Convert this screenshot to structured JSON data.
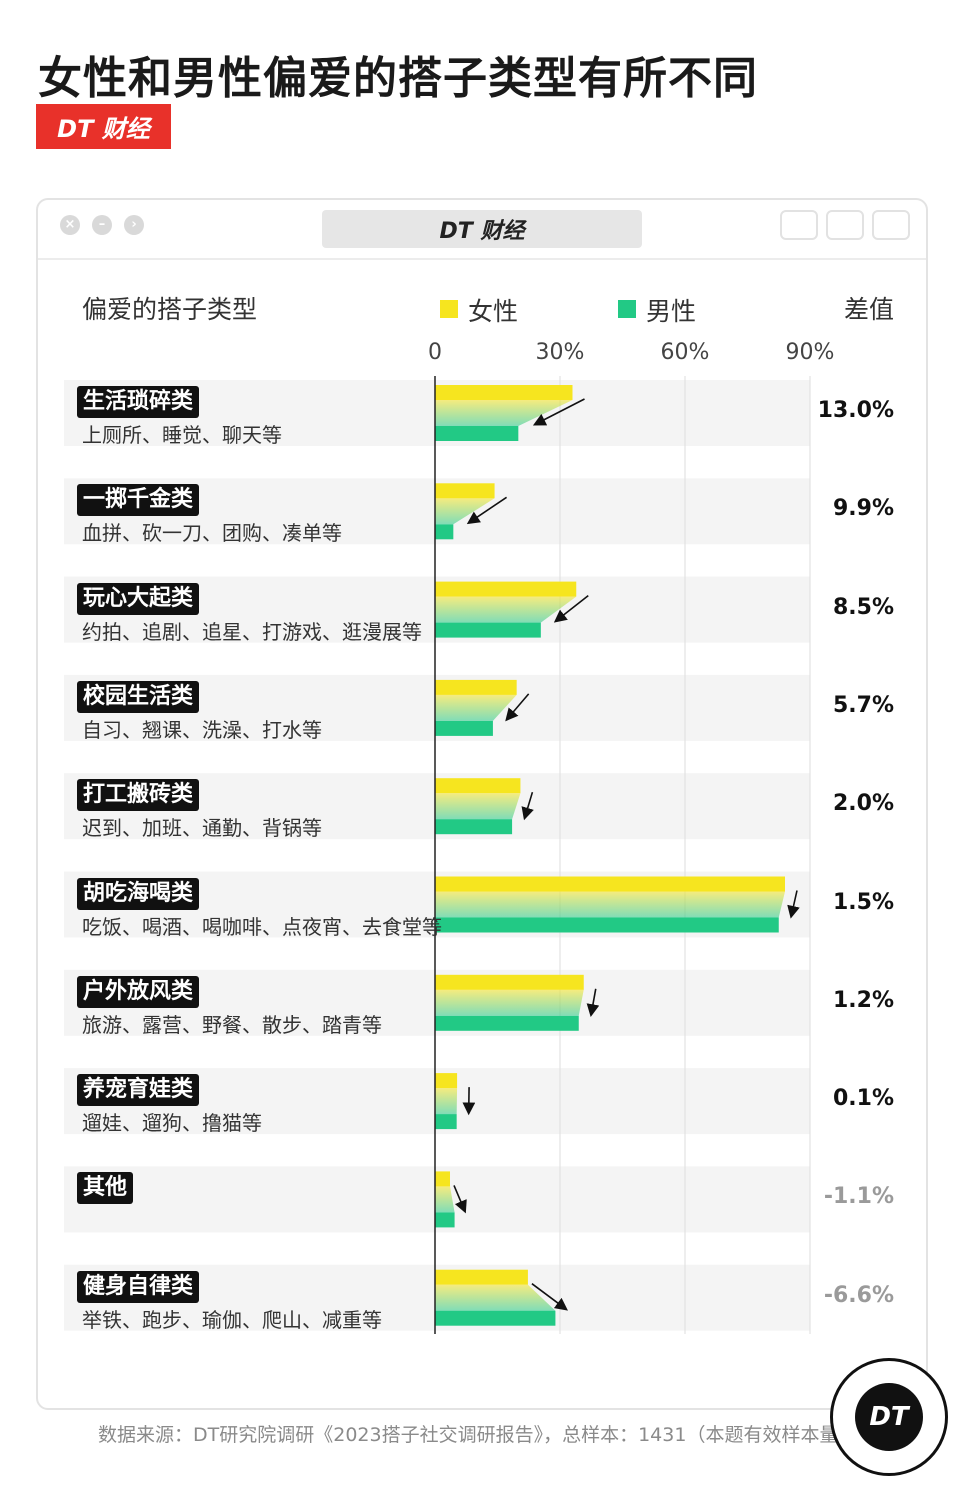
{
  "headline": "女性和男性偏爱的搭子类型有所不同",
  "brand": "DT 财经",
  "window_title": "DT 财经",
  "header": {
    "category_label": "偏爱的搭子类型",
    "diff_label": "差值"
  },
  "colors": {
    "female": "#f6e51f",
    "male": "#22c985",
    "badge": "#e8312a"
  },
  "chart_data": {
    "type": "bar",
    "xlim": [
      0,
      90
    ],
    "x_ticks": [
      "0",
      "30%",
      "60%",
      "90%"
    ],
    "x_tick_values": [
      0,
      30,
      60,
      90
    ],
    "series": [
      {
        "name": "女性",
        "values": [
          33.0,
          14.3,
          33.9,
          19.6,
          20.5,
          84.0,
          35.7,
          5.3,
          3.6,
          22.3
        ]
      },
      {
        "name": "男性",
        "values": [
          20.0,
          4.4,
          25.4,
          13.9,
          18.5,
          82.5,
          34.5,
          5.2,
          4.7,
          28.9
        ]
      }
    ],
    "categories": [
      {
        "name": "生活琐碎类",
        "desc": "上厕所、睡觉、聊天等",
        "diff": "13.0%"
      },
      {
        "name": "一掷千金类",
        "desc": "血拼、砍一刀、团购、凑单等",
        "diff": "9.9%"
      },
      {
        "name": "玩心大起类",
        "desc": "约拍、追剧、追星、打游戏、逛漫展等",
        "diff": "8.5%"
      },
      {
        "name": "校园生活类",
        "desc": "自习、翘课、洗澡、打水等",
        "diff": "5.7%"
      },
      {
        "name": "打工搬砖类",
        "desc": "迟到、加班、通勤、背锅等",
        "diff": "2.0%"
      },
      {
        "name": "胡吃海喝类",
        "desc": "吃饭、喝酒、喝咖啡、点夜宵、去食堂等",
        "diff": "1.5%"
      },
      {
        "name": "户外放风类",
        "desc": "旅游、露营、野餐、散步、踏青等",
        "diff": "1.2%"
      },
      {
        "name": "养宠育娃类",
        "desc": "遛娃、遛狗、撸猫等",
        "diff": "0.1%"
      },
      {
        "name": "其他",
        "desc": "",
        "diff": "-1.1%"
      },
      {
        "name": "健身自律类",
        "desc": "举铁、跑步、瑜伽、爬山、减重等",
        "diff": "-6.6%"
      }
    ]
  },
  "source": "数据来源：DT研究院调研《2023搭子社交调研报告》，总样本：1431（本题有效样本量：755）",
  "logo_text": "DT"
}
